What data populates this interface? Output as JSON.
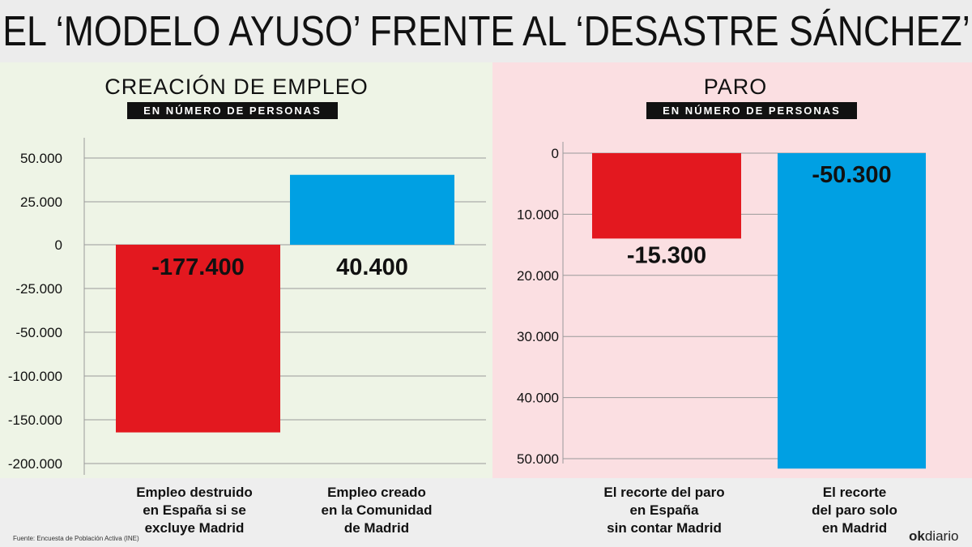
{
  "title": "EL ‘MODELO AYUSO’ FRENTE AL ‘DESASTRE SÁNCHEZ’",
  "source": "Fuente: Encuesta de Población Activa (INE)",
  "logo": {
    "ok": "ok",
    "rest": "diario"
  },
  "colors": {
    "red": "#e3181f",
    "blue": "#00a0e3",
    "left_bg": "#eef4e6",
    "right_bg": "#fbdfe2"
  },
  "chart_data": [
    {
      "type": "bar",
      "title": "CREACIÓN DE EMPLEO",
      "subtitle": "EN NÚMERO DE PERSONAS",
      "categories": [
        "Empleo destruido en España si se excluye Madrid",
        "Empleo creado en la Comunidad de Madrid"
      ],
      "category_lines": [
        [
          "Empleo destruido",
          "en España si se",
          "excluye Madrid"
        ],
        [
          "Empleo creado",
          "en la Comunidad",
          "de Madrid"
        ]
      ],
      "values": [
        -177400,
        40400
      ],
      "value_labels": [
        "-177.400",
        "40.400"
      ],
      "bar_colors": [
        "#e3181f",
        "#00a0e3"
      ],
      "ytick_labels": [
        "50.000",
        "25.000",
        "0",
        "-25.000",
        "-50.000",
        "-100.000",
        "-150.000",
        "-200.000"
      ],
      "grid": true
    },
    {
      "type": "bar",
      "title": "PARO",
      "subtitle": "EN NÚMERO DE PERSONAS",
      "categories": [
        "El recorte del paro en España sin contar Madrid",
        "El recorte del paro solo en Madrid"
      ],
      "category_lines": [
        [
          "El recorte del paro",
          "en España",
          "sin contar Madrid"
        ],
        [
          "El recorte",
          "del paro solo",
          "en Madrid"
        ]
      ],
      "values": [
        -15300,
        -50300
      ],
      "value_labels": [
        "-15.300",
        "-50.300"
      ],
      "bar_colors": [
        "#e3181f",
        "#00a0e3"
      ],
      "ytick_labels": [
        "0",
        "10.000",
        "20.000",
        "30.000",
        "40.000",
        "50.000"
      ],
      "ylim": [
        0,
        50000
      ],
      "inverted_axis": true,
      "grid": true
    }
  ]
}
